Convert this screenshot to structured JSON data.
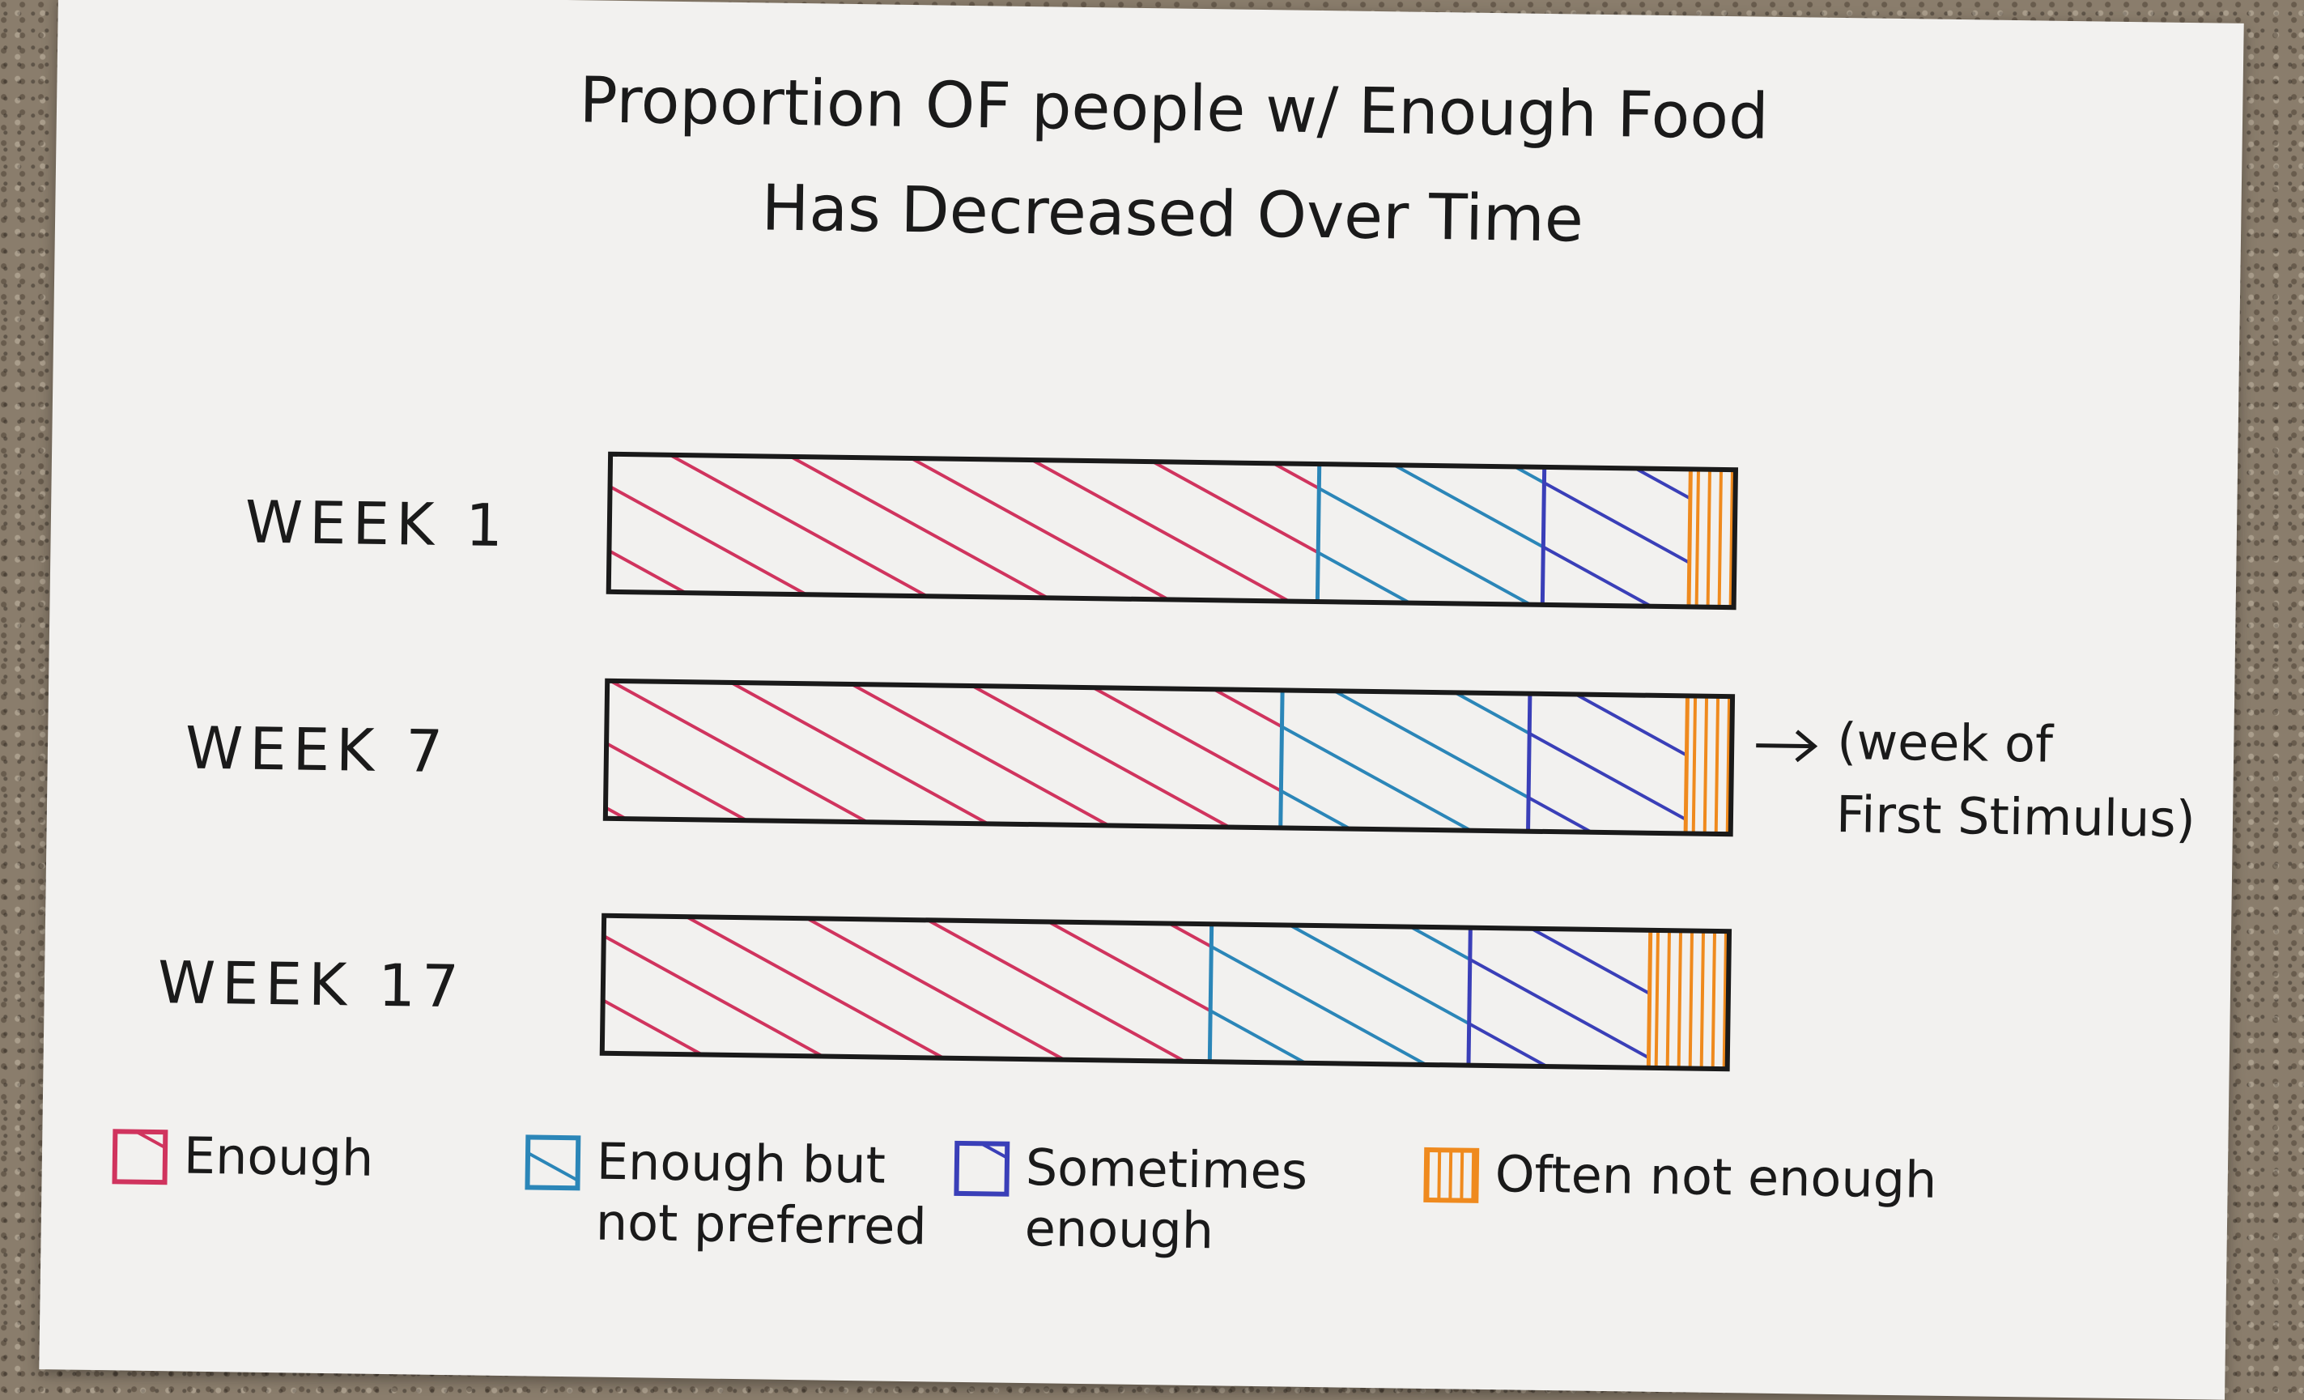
{
  "chart_data": {
    "type": "bar",
    "orientation": "horizontal",
    "stacked": "100%",
    "title": "Proportion OF people w/ Enough Food Has Decreased Over Time",
    "title_lines": [
      "Proportion OF people w/ Enough Food",
      "Has Decreased Over Time"
    ],
    "categories": [
      "WEEK 1",
      "WEEK 7",
      "WEEK 17"
    ],
    "series": [
      {
        "name": "Enough",
        "color": "#d0345e",
        "values": [
          63,
          60,
          54
        ]
      },
      {
        "name": "Enough but not preferred",
        "color": "#2b86b8",
        "values": [
          20,
          22,
          23
        ]
      },
      {
        "name": "Sometimes enough",
        "color": "#3a3fb8",
        "values": [
          13,
          14,
          16
        ]
      },
      {
        "name": "Often not enough",
        "color": "#ef8a1e",
        "values": [
          4,
          4,
          7
        ]
      }
    ],
    "annotation": {
      "category": "WEEK 7",
      "text_lines": [
        "(week of",
        "First Stimulus)"
      ]
    },
    "legend_position": "bottom",
    "xlim": [
      0,
      100
    ],
    "grid": false
  }
}
